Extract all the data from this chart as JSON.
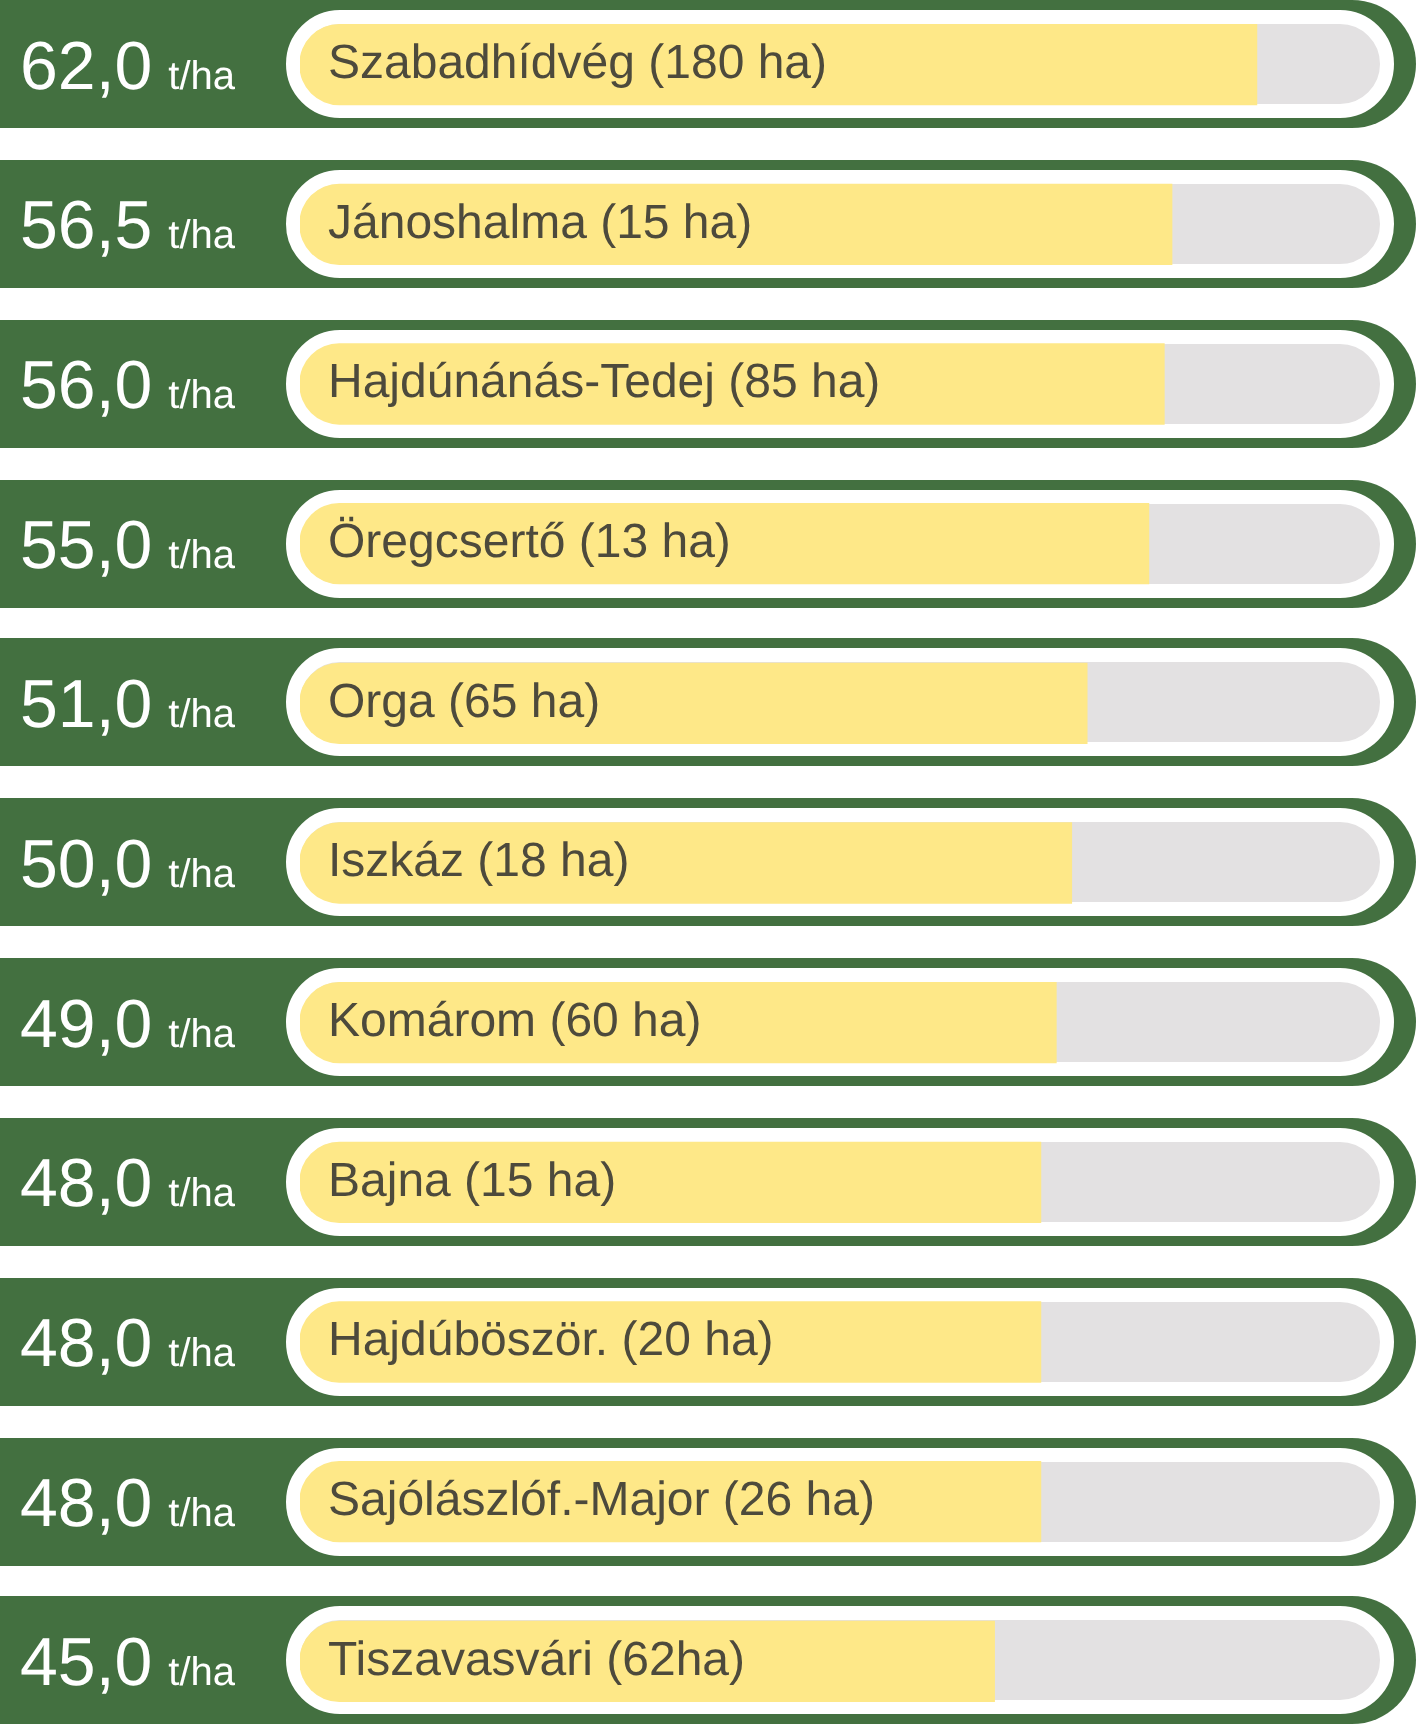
{
  "chart_data": {
    "type": "bar",
    "orientation": "horizontal",
    "categories": [
      "Szabadhídvég (180 ha)",
      "Jánoshalma (15 ha)",
      "Hajdúnánás-Tedej (85 ha)",
      "Öregcsertő (13 ha)",
      "Orga (65 ha)",
      "Iszkáz (18 ha)",
      "Komárom (60 ha)",
      "Bajna (15 ha)",
      "Hajdúböször. (20 ha)",
      "Sajólászlóf.-Major (26 ha)",
      "Tiszavasvári (62ha)"
    ],
    "values": [
      62.0,
      56.5,
      56.0,
      55.0,
      51.0,
      50.0,
      49.0,
      48.0,
      48.0,
      48.0,
      45.0
    ],
    "value_labels": [
      "62,0 t/ha",
      "56,5 t/ha",
      "56,0 t/ha",
      "55,0 t/ha",
      "51,0 t/ha",
      "50,0 t/ha",
      "49,0 t/ha",
      "48,0 t/ha",
      "48,0 t/ha",
      "48,0 t/ha",
      "45,0 t/ha"
    ],
    "color": "#fee888",
    "tick_labels": "y"
  }
}
